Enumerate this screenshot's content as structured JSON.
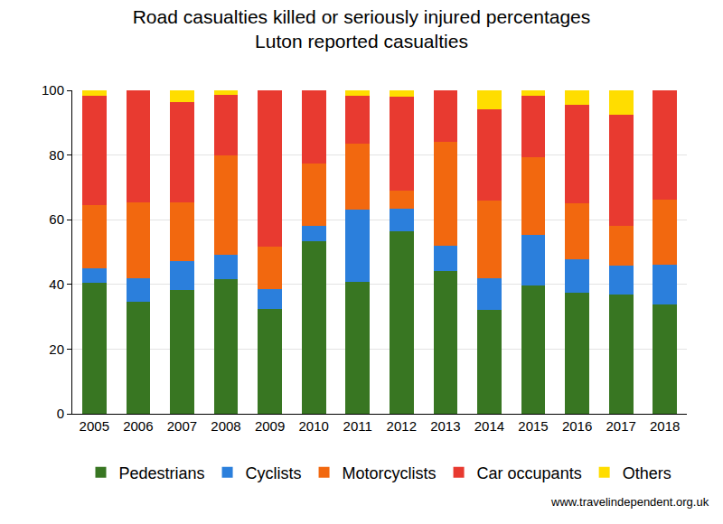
{
  "chart_data": {
    "type": "bar",
    "title": "Road casualties killed or seriously injured percentages",
    "subtitle": "Luton reported casualties",
    "annotations": [
      "www.travelindependent.org.uk"
    ],
    "categories": [
      "2005",
      "2006",
      "2007",
      "2008",
      "2009",
      "2010",
      "2011",
      "2012",
      "2013",
      "2014",
      "2015",
      "2016",
      "2017",
      "2018"
    ],
    "series": [
      {
        "name": "Pedestrians",
        "color": "#387622",
        "values": [
          40.5,
          34.5,
          38.2,
          41.5,
          32.5,
          53.3,
          40.7,
          56.3,
          44,
          32,
          39.7,
          37.5,
          37,
          33.7
        ]
      },
      {
        "name": "Cyclists",
        "color": "#2b7fdc",
        "values": [
          4.5,
          7.3,
          9.1,
          7.8,
          6,
          4.7,
          22.5,
          7.1,
          8,
          10,
          15.5,
          10.4,
          8.7,
          12.5
        ]
      },
      {
        "name": "Motorcyclists",
        "color": "#f2680f",
        "values": [
          19.5,
          23.7,
          18.2,
          30.7,
          13.3,
          19.5,
          20.4,
          5.6,
          32,
          24,
          24.1,
          17.2,
          12.3,
          20.1
        ]
      },
      {
        "name": "Car occupants",
        "color": "#e83a30",
        "values": [
          33.8,
          34.5,
          30.9,
          18.5,
          48.2,
          22.5,
          14.6,
          29,
          16,
          28,
          19,
          30.5,
          34.5,
          33.7
        ]
      },
      {
        "name": "Others",
        "color": "#ffdd00",
        "values": [
          1.7,
          0,
          3.6,
          1.5,
          0,
          0,
          1.8,
          2,
          0,
          6,
          1.7,
          4.4,
          7.5,
          0
        ]
      }
    ],
    "stacked": true,
    "ylim": [
      0,
      100
    ],
    "yticks": [
      0,
      20,
      40,
      60,
      80,
      100
    ],
    "grid": true,
    "legend": "bottom"
  }
}
